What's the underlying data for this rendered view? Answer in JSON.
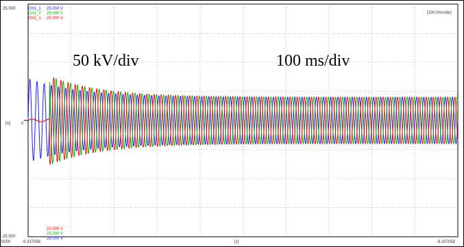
{
  "chart_data": {
    "type": "line",
    "title": "",
    "xlabel": "[s]",
    "ylabel": "[V]",
    "ylim": [
      -25.0,
      25.0
    ],
    "x_range": [
      -9.337058,
      -8.337058
    ],
    "y_top_label": "25.000",
    "y_bottom_label": "-25.000",
    "y_zero_label": "0",
    "x_left_edge_label": "0000",
    "x_start_label": "-9.337058",
    "x_end_label": "-8.337058",
    "timebase_label": "[100.0ms/div]",
    "grid": true,
    "annotations": [
      "50 kV/div",
      "100 ms/div"
    ],
    "legend_top": [
      {
        "name": "CH1_1",
        "scale": "25.000 V",
        "color": "#1a1aff"
      },
      {
        "name": "CH1_2",
        "scale": "25.000 V",
        "color": "#00b400"
      },
      {
        "name": "CH2_1",
        "scale": "25.000 V",
        "color": "#ff0000"
      }
    ],
    "legend_bottom": [
      {
        "scale": "25.000 V",
        "color": "#ff0000"
      },
      {
        "scale": "25.000 V",
        "color": "#00b400"
      },
      {
        "scale": "25.000 V",
        "color": "#1a1aff"
      }
    ],
    "series": [
      {
        "name": "CH1_1",
        "color": "#1a1aff",
        "phase_deg": 0,
        "freq_hz": 60,
        "start_s": -9.337058,
        "initial_amplitude_v": 9.0,
        "steady_amplitude_v": 5.0
      },
      {
        "name": "CH1_2",
        "color": "#00b400",
        "phase_deg": 120,
        "freq_hz": 60,
        "start_s": -9.287058,
        "initial_amplitude_v": 9.5,
        "steady_amplitude_v": 5.0
      },
      {
        "name": "CH2_1",
        "color": "#ff0000",
        "phase_deg": 240,
        "freq_hz": 60,
        "start_s": -9.287058,
        "initial_amplitude_v": 9.5,
        "steady_amplitude_v": 5.0
      }
    ]
  }
}
